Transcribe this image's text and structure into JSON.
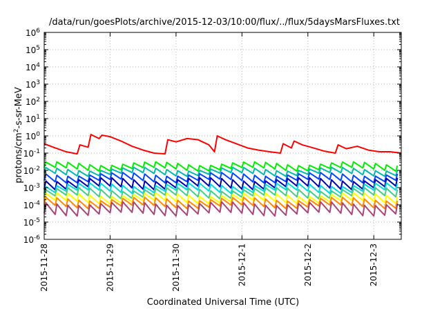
{
  "chart_data": {
    "type": "line",
    "title": "/data/run/goesPlots/archive/2015-12-03/10:00/flux/../flux/5daysMarsFluxes.txt",
    "xlabel": "Coordinated Universal Time (UTC)",
    "ylabel": {
      "prefix": "protons/cm",
      "sup": "2",
      "suffix": "-s-sr-MeV"
    },
    "yscale": "log",
    "ylim": [
      1e-06,
      1000000.0
    ],
    "xlim": [
      "2015-11-28 00:00",
      "2015-12-03 10:00"
    ],
    "x_ticks": [
      "2015-11-28",
      "2015-11-29",
      "2015-11-30",
      "2015-12-1",
      "2015-12-2",
      "2015-12-3"
    ],
    "y_ticks": [
      {
        "base": "10",
        "exp": "-6"
      },
      {
        "base": "10",
        "exp": "-5"
      },
      {
        "base": "10",
        "exp": "-4"
      },
      {
        "base": "10",
        "exp": "-3"
      },
      {
        "base": "10",
        "exp": "-2"
      },
      {
        "base": "10",
        "exp": "-1"
      },
      {
        "base": "10",
        "exp": "0"
      },
      {
        "base": "10",
        "exp": "1"
      },
      {
        "base": "10",
        "exp": "2"
      },
      {
        "base": "10",
        "exp": "3"
      },
      {
        "base": "10",
        "exp": "4"
      },
      {
        "base": "10",
        "exp": "5"
      },
      {
        "base": "10",
        "exp": "6"
      }
    ],
    "grid": true,
    "series": [
      {
        "color": "#ff0000",
        "x": [
          "2015-11-28 00:00",
          "2015-11-28 04:00",
          "2015-11-28 08:00",
          "2015-11-28 12:00",
          "2015-11-28 13:00",
          "2015-11-28 16:00",
          "2015-11-28 17:00",
          "2015-11-28 20:00",
          "2015-11-28 21:00",
          "2015-11-29 00:00",
          "2015-11-29 04:00",
          "2015-11-29 08:00",
          "2015-11-29 12:00",
          "2015-11-29 16:00",
          "2015-11-29 20:00",
          "2015-11-29 21:00",
          "2015-11-30 00:00",
          "2015-11-30 04:00",
          "2015-11-30 08:00",
          "2015-11-30 12:00",
          "2015-11-30 14:00",
          "2015-11-30 15:00",
          "2015-11-30 18:00",
          "2015-11-30 22:00",
          "2015-12-01 02:00",
          "2015-12-01 06:00",
          "2015-12-01 10:00",
          "2015-12-01 14:00",
          "2015-12-01 15:00",
          "2015-12-01 18:00",
          "2015-12-01 19:00",
          "2015-12-01 22:00",
          "2015-12-02 02:00",
          "2015-12-02 06:00",
          "2015-12-02 10:00",
          "2015-12-02 11:00",
          "2015-12-02 14:00",
          "2015-12-02 18:00",
          "2015-12-02 22:00",
          "2015-12-03 02:00",
          "2015-12-03 06:00",
          "2015-12-03 10:00"
        ],
        "y": [
          0.35,
          0.2,
          0.12,
          0.09,
          0.3,
          0.22,
          1.2,
          0.7,
          1.1,
          0.9,
          0.5,
          0.25,
          0.15,
          0.1,
          0.09,
          0.6,
          0.45,
          0.7,
          0.6,
          0.3,
          0.12,
          1.0,
          0.6,
          0.35,
          0.2,
          0.15,
          0.12,
          0.1,
          0.35,
          0.2,
          0.5,
          0.3,
          0.2,
          0.13,
          0.1,
          0.3,
          0.18,
          0.25,
          0.15,
          0.12,
          0.12,
          0.1
        ]
      },
      {
        "color": "#00ee00",
        "peak": 0.025,
        "trough": 0.012
      },
      {
        "color": "#00bbaa",
        "peak": 0.012,
        "trough": 0.006
      },
      {
        "color": "#0044ff",
        "peak": 0.006,
        "trough": 0.0025
      },
      {
        "color": "#0000aa",
        "peak": 0.003,
        "trough": 0.001
      },
      {
        "color": "#00dddd",
        "peak": 0.0015,
        "trough": 0.0006
      },
      {
        "color": "#44cc88",
        "peak": 0.0008,
        "trough": 0.0003
      },
      {
        "color": "#ffff00",
        "peak": 0.0004,
        "trough": 0.00015
      },
      {
        "color": "#ff8800",
        "peak": 0.00022,
        "trough": 8e-05
      },
      {
        "color": "#aa4477",
        "peak": 0.00012,
        "trough": 3e-05
      }
    ]
  }
}
